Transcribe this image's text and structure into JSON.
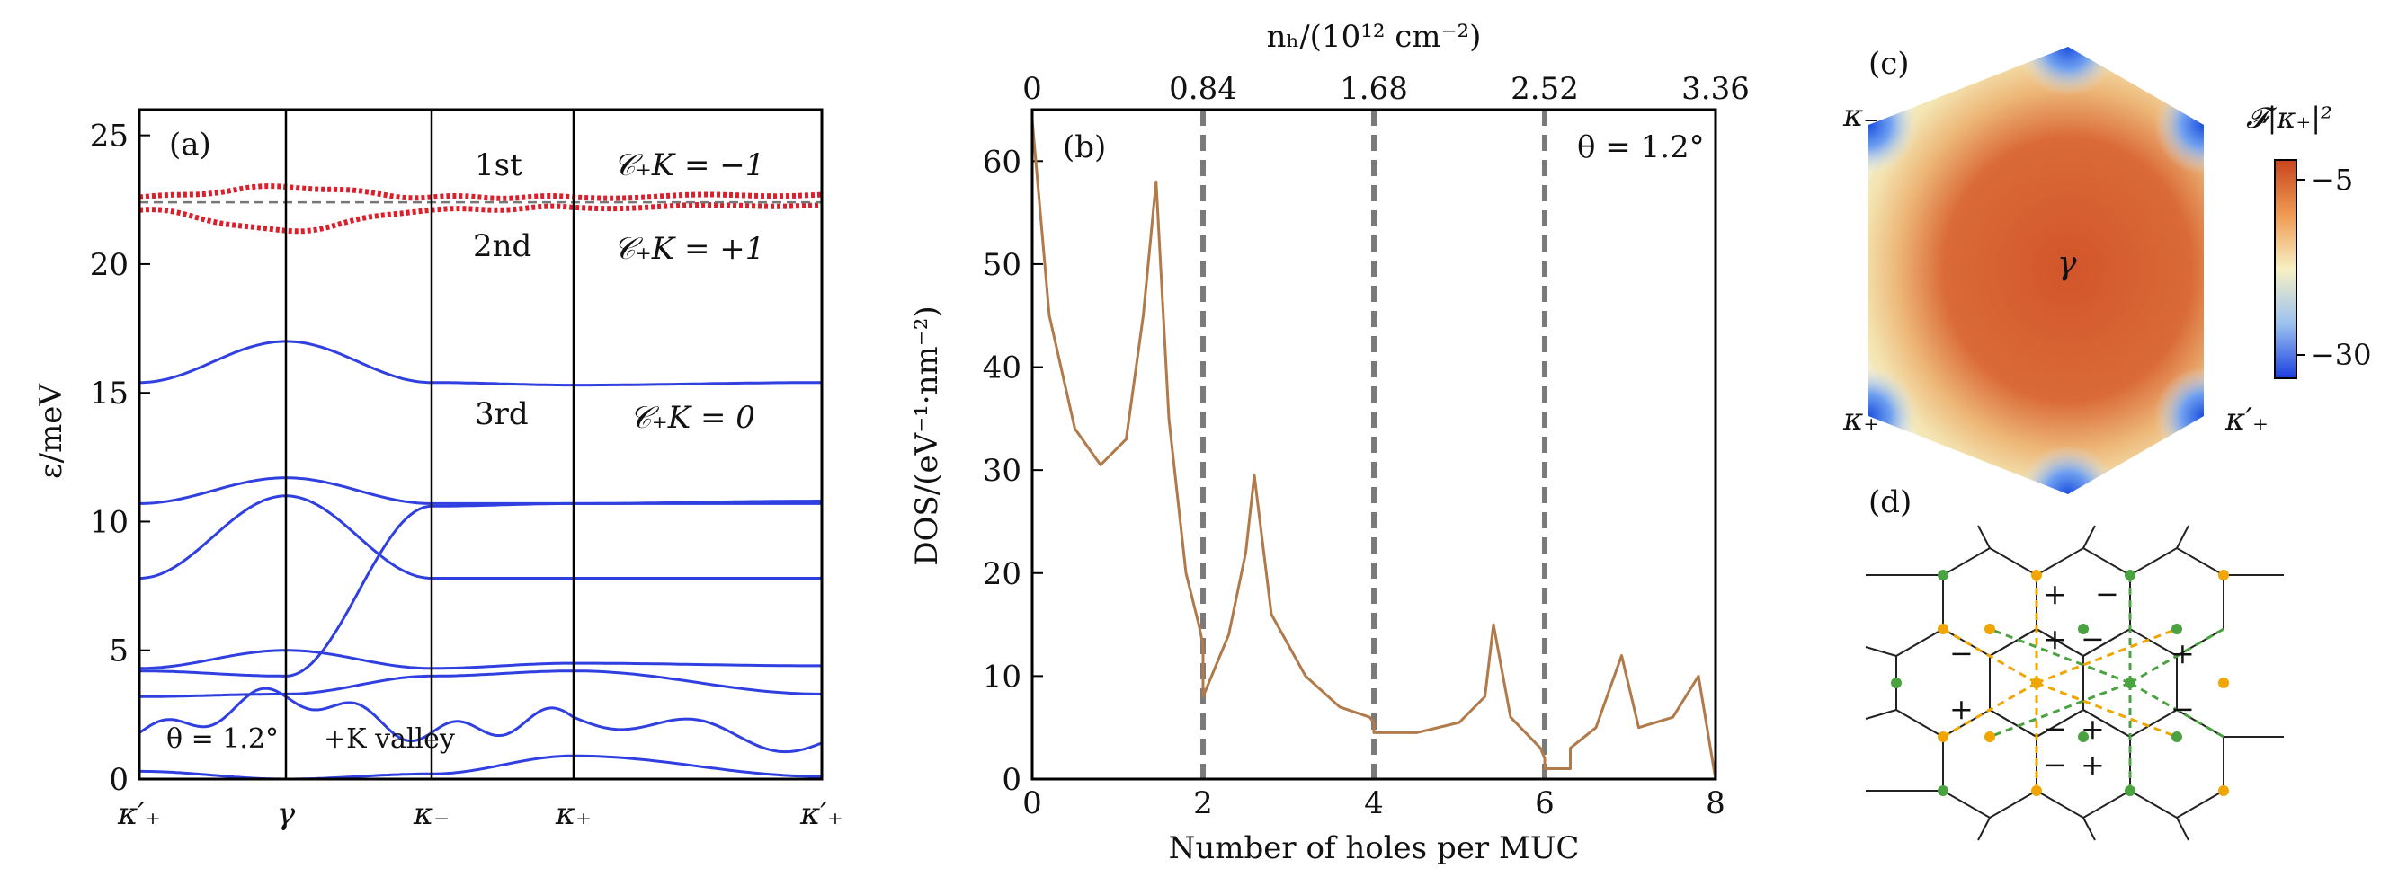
{
  "chart_data": [
    {
      "type": "line",
      "panel": "(a)",
      "ylabel": "ε/meV",
      "ylim": [
        0,
        26
      ],
      "y_ticks": [
        "0",
        "5",
        "10",
        "15",
        "20",
        "25"
      ],
      "x_ticks": [
        "κ′₊",
        "γ",
        "κ₋",
        "κ₊",
        "κ′₊"
      ],
      "annotations": {
        "band1": "1st",
        "band2": "2nd",
        "band3": "3rd",
        "c1": "𝒞₊K = −1",
        "c2": "𝒞₊K = +1",
        "c3": "𝒞₊K = 0",
        "theta": "θ = 1.2°",
        "valley": "+K valley"
      },
      "series": [
        {
          "role": "flat band 1",
          "color": "#dd1f2b",
          "y": [
            22.6,
            23.0,
            22.6,
            22.6,
            22.7
          ]
        },
        {
          "role": "flat band 2",
          "color": "#dd1f2b",
          "y": [
            22.1,
            21.3,
            22.1,
            22.2,
            22.3
          ]
        },
        {
          "role": "dashed reference",
          "y": [
            22.4,
            22.4,
            22.4,
            22.4,
            22.4
          ]
        },
        {
          "role": "band 3",
          "y": [
            15.4,
            17.0,
            15.4,
            15.7,
            15.3,
            16.3,
            15.4
          ]
        },
        {
          "role": "remote bands",
          "y_range": [
            0,
            11.7
          ]
        }
      ]
    },
    {
      "type": "line",
      "panel": "(b)",
      "xlabel": "Number of holes per MUC",
      "ylabel": "DOS/(eV⁻¹·nm⁻²)",
      "top_xlabel": "nₕ/(10¹² cm⁻²)",
      "xlim": [
        0,
        8
      ],
      "ylim": [
        0,
        65
      ],
      "x_ticks": [
        "0",
        "2",
        "4",
        "6",
        "8"
      ],
      "top_ticks": [
        "0",
        "0.84",
        "1.68",
        "2.52",
        "3.36"
      ],
      "y_ticks": [
        "0",
        "10",
        "20",
        "30",
        "40",
        "50",
        "60"
      ],
      "dashed_x": [
        2,
        4,
        6
      ],
      "annotation": "θ = 1.2°",
      "series": [
        {
          "color": "#b07a4a",
          "x": [
            0,
            0.2,
            0.5,
            0.8,
            1.1,
            1.3,
            1.45,
            1.6,
            1.8,
            1.95,
            2.0,
            2.0,
            2.3,
            2.5,
            2.6,
            2.8,
            3.2,
            3.6,
            3.95,
            4.0,
            4.0,
            4.5,
            5.0,
            5.3,
            5.4,
            5.6,
            5.95,
            6.0,
            6.0,
            6.3,
            6.3,
            6.6,
            6.9,
            7.1,
            7.5,
            7.8,
            8.0
          ],
          "y": [
            64,
            45,
            34,
            30.5,
            33,
            45,
            58,
            35,
            20,
            15,
            13,
            8,
            14,
            22,
            29.5,
            16,
            10,
            7,
            6,
            5.5,
            4.5,
            4.5,
            5.5,
            8,
            15,
            6,
            3,
            2,
            1,
            1,
            3,
            5,
            12,
            5,
            6,
            10,
            0
          ]
        }
      ]
    },
    {
      "type": "heatmap",
      "panel": "(c)",
      "colorbar_label": "𝓕|κ₊|²",
      "colorbar_ticks": [
        "−5",
        "−30"
      ],
      "center_label": "γ",
      "corner_labels": {
        "upper_left": "κ₋",
        "lower_left": "κ₊",
        "lower_right": "κ′₊"
      }
    },
    {
      "type": "diagram",
      "panel": "(d)",
      "signs": [
        "+",
        "−"
      ],
      "colors": {
        "orange": "#f0a500",
        "green": "#4aa340"
      }
    }
  ],
  "labels": {
    "a": "(a)",
    "b": "(b)",
    "c": "(c)",
    "d": "(d)"
  }
}
